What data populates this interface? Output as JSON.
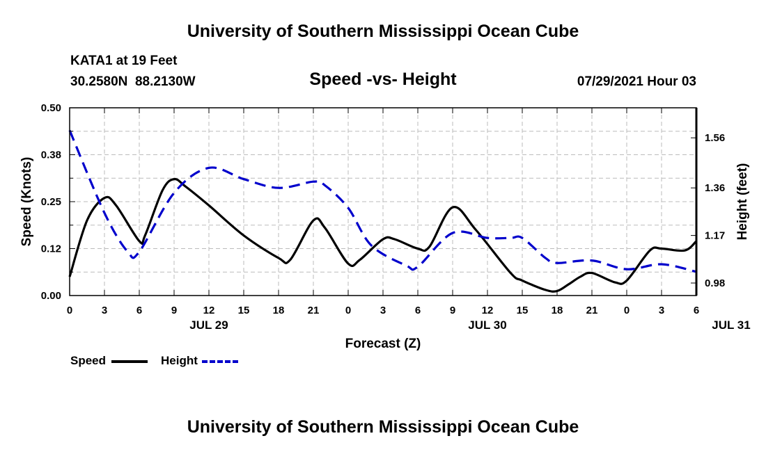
{
  "header": {
    "title": "University of Southern Mississippi Ocean Cube",
    "station": "KATA1 at 19 Feet",
    "location": "30.2580N  88.2130W",
    "datetime": "07/29/2021 Hour 03"
  },
  "footer": {
    "title": "University of Southern Mississippi Ocean Cube"
  },
  "chart_data": {
    "type": "line",
    "title": "Speed -vs- Height",
    "xlabel": "Forecast (Z)",
    "ylabel": "Speed (Knots)",
    "y2label": "Height (feet)",
    "x_ticks": [
      "0",
      "3",
      "6",
      "9",
      "12",
      "15",
      "18",
      "21",
      "0",
      "3",
      "6",
      "9",
      "12",
      "15",
      "18",
      "21",
      "0",
      "3",
      "6"
    ],
    "x_dates": [
      {
        "label": "JUL 29",
        "hour": 12
      },
      {
        "label": "JUL 30",
        "hour": 36
      },
      {
        "label": "JUL 31",
        "hour": 57
      }
    ],
    "xlim": [
      0,
      54
    ],
    "ylim": [
      0.0,
      0.5
    ],
    "y_ticks": [
      "0.00",
      "0.12",
      "0.25",
      "0.38",
      "0.50"
    ],
    "y2lim": [
      0.93,
      1.68
    ],
    "y2_ticks": [
      "0.98",
      "1.17",
      "1.36",
      "1.56"
    ],
    "grid": true,
    "colors": {
      "speed": "#000000",
      "height": "#0000cc",
      "grid": "#bbbbbb"
    },
    "series": [
      {
        "name": "Speed",
        "axis": "left",
        "style": "solid",
        "x": [
          0,
          1.5,
          3,
          4,
          6,
          6.5,
          8,
          9,
          10,
          12,
          15,
          18,
          19,
          21,
          22,
          24,
          25,
          27,
          28,
          30,
          31,
          33,
          35,
          38,
          39,
          41,
          42,
          43,
          44,
          45,
          47,
          48,
          50,
          51,
          53,
          54
        ],
        "values": [
          0.05,
          0.2,
          0.26,
          0.24,
          0.145,
          0.16,
          0.28,
          0.31,
          0.29,
          0.24,
          0.16,
          0.1,
          0.095,
          0.2,
          0.18,
          0.085,
          0.095,
          0.15,
          0.15,
          0.125,
          0.13,
          0.235,
          0.175,
          0.06,
          0.04,
          0.015,
          0.012,
          0.03,
          0.05,
          0.06,
          0.035,
          0.04,
          0.12,
          0.125,
          0.12,
          0.145
        ]
      },
      {
        "name": "Height",
        "axis": "right",
        "style": "dashed",
        "x": [
          0,
          3,
          5,
          6,
          9,
          12,
          15,
          18,
          21,
          22,
          24,
          26,
          29,
          30,
          33,
          36,
          38,
          39,
          41,
          42,
          45,
          48,
          51,
          54
        ],
        "values": [
          1.59,
          1.26,
          1.105,
          1.105,
          1.34,
          1.44,
          1.395,
          1.36,
          1.385,
          1.37,
          1.28,
          1.13,
          1.05,
          1.045,
          1.18,
          1.16,
          1.16,
          1.16,
          1.08,
          1.06,
          1.07,
          1.035,
          1.055,
          1.025
        ]
      }
    ]
  }
}
